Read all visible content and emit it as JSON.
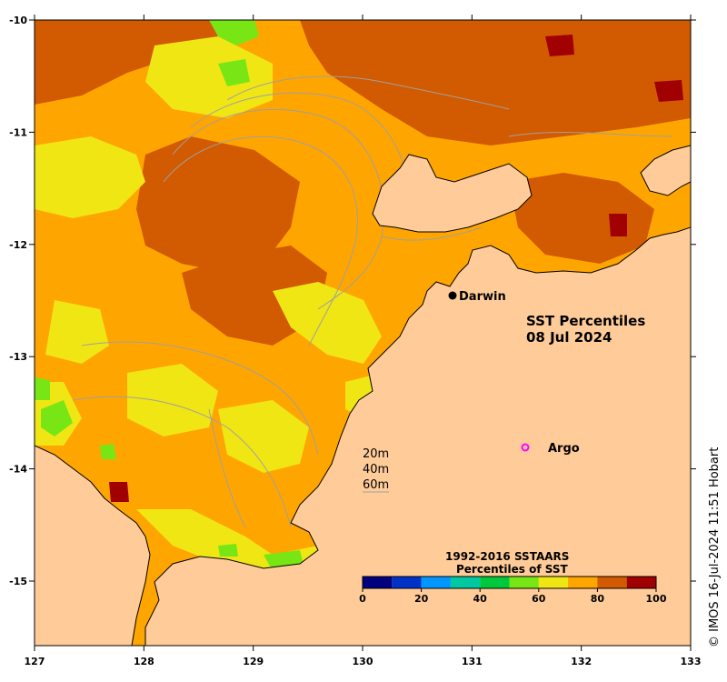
{
  "title": {
    "line1": "SST Percentiles",
    "line2": "08 Jul 2024"
  },
  "axes": {
    "lon_ticks": [
      "127",
      "128",
      "129",
      "130",
      "131",
      "132",
      "133"
    ],
    "lat_ticks": [
      "-10",
      "-11",
      "-12",
      "-13",
      "-14",
      "-15"
    ],
    "lon_range": [
      127,
      133
    ],
    "lat_range": [
      -15.6,
      -10
    ]
  },
  "places": [
    {
      "name": "Darwin",
      "lon": 130.83,
      "lat": -12.46,
      "marker": "filled-dot"
    }
  ],
  "argo": {
    "label": "Argo",
    "lon": 131.5,
    "lat": -13.8,
    "color": "#ff00ff"
  },
  "depth_legend": [
    "20m",
    "40m",
    "60m"
  ],
  "colorbar": {
    "title1": "1992-2016 SSTAARS",
    "title2": "Percentiles of SST",
    "ticks": [
      "0",
      "20",
      "40",
      "60",
      "80",
      "100"
    ],
    "colors": [
      "#00007f",
      "#0032c8",
      "#0096ff",
      "#00c8a0",
      "#00c83c",
      "#78e614",
      "#f0e614",
      "#ffa500",
      "#d25a00",
      "#a00000"
    ]
  },
  "credit": "© IMOS 16-Jul-2024 11:51 Hobart",
  "colors": {
    "land": "#ffcc99",
    "p50_60": "#78e614",
    "p60_70": "#f0e614",
    "p70_80": "#ffa500",
    "p80_90": "#d25a00",
    "p90_100": "#a00000",
    "contour": "#a0a0a0"
  }
}
